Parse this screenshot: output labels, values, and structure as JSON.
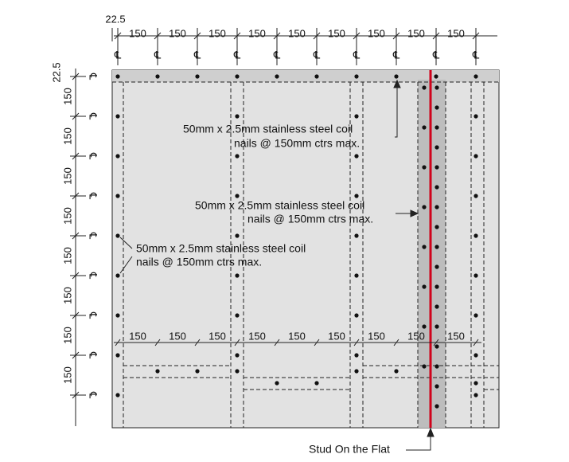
{
  "top_dimensions": {
    "offset": "22.5",
    "spacings": [
      "150",
      "150",
      "150",
      "150",
      "150",
      "150",
      "150",
      "150",
      "150"
    ],
    "centerlines": [
      "℄",
      "℄",
      "℄",
      "℄",
      "℄",
      "℄",
      "℄",
      "℄",
      "℄",
      "℄"
    ]
  },
  "left_dimensions": {
    "offset": "22.5",
    "spacings": [
      "150",
      "150",
      "150",
      "150",
      "150",
      "150",
      "150",
      "150"
    ],
    "centerlines": [
      "℄",
      "℄",
      "℄",
      "℄",
      "℄",
      "℄",
      "℄",
      "℄",
      "℄"
    ]
  },
  "inner_dimensions": [
    "150",
    "150",
    "150",
    "150",
    "150",
    "150",
    "150",
    "150",
    "150"
  ],
  "annotations": [
    [
      "50mm x 2.5mm stainless steel coil",
      "nails @ 150mm ctrs max."
    ],
    [
      "50mm x 2.5mm stainless steel coil",
      "nails @ 150mm ctrs max."
    ],
    [
      "50mm x 2.5mm stainless steel coil",
      "nails @ 150mm ctrs max."
    ]
  ],
  "stud_label": "Stud On the Flat"
}
